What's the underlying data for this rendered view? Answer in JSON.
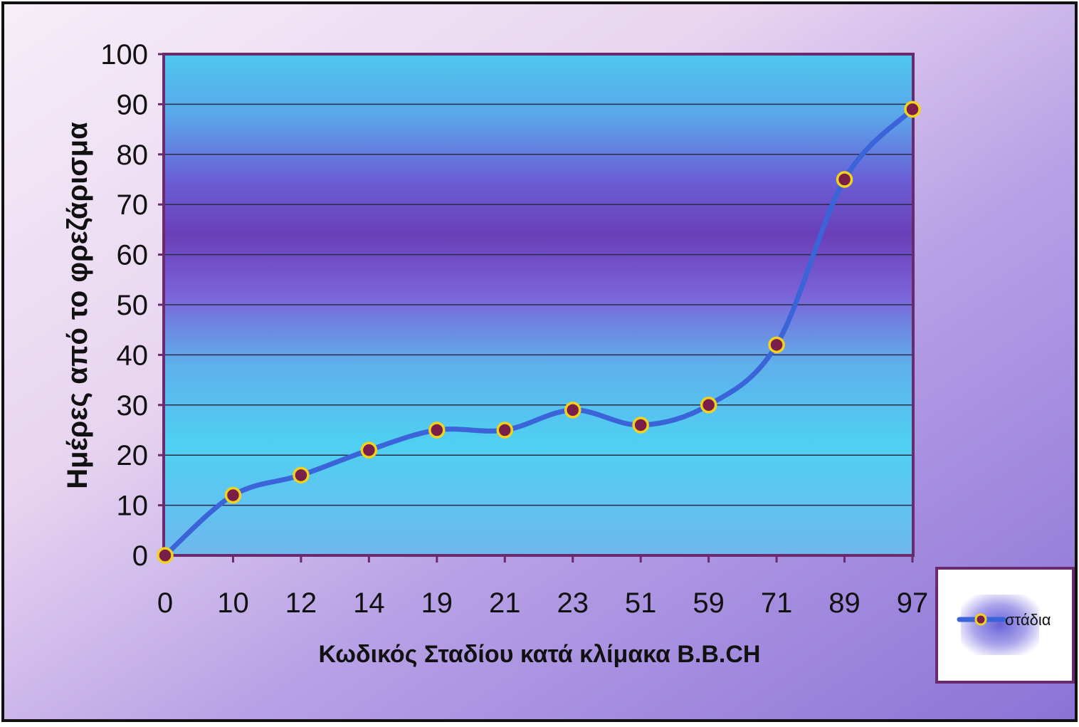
{
  "chart_data": {
    "type": "line",
    "categories": [
      "0",
      "10",
      "12",
      "14",
      "19",
      "21",
      "23",
      "51",
      "59",
      "71",
      "89",
      "97"
    ],
    "series": [
      {
        "name": "στάδια",
        "values": [
          0,
          12,
          16,
          21,
          25,
          25,
          29,
          26,
          30,
          42,
          75,
          89
        ]
      }
    ],
    "title": "",
    "xlabel": "Κωδικός Σταδίου κατά κλίμακα B.B.CH",
    "ylabel": "Ημέρες από το φρεζάρισμα",
    "ylim": [
      0,
      100
    ],
    "yticks": [
      "0",
      "10",
      "20",
      "30",
      "40",
      "50",
      "60",
      "70",
      "80",
      "90",
      "100"
    ],
    "grid": true,
    "legend": "right",
    "colors": {
      "line": "#3a64d8",
      "marker_fill": "#7a1f4a",
      "marker_edge": "#f2d21b",
      "plot_border": "#6a2a6e",
      "text": "#111111"
    }
  }
}
